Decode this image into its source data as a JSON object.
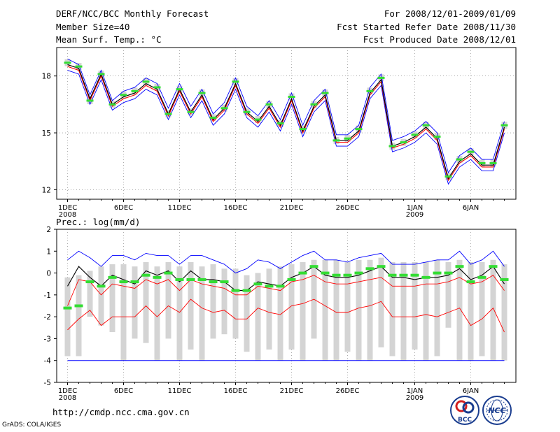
{
  "header": {
    "title": "DERF/NCC/BCC Monthly Forecast",
    "member_size": "Member Size=40",
    "variable": "Mean Surf. Temp.: °C",
    "period": "For 2008/12/01-2009/01/09",
    "started": "Fcst Started Refer Date 2008/11/30",
    "produced": "Fcst Produced Date 2008/12/01"
  },
  "footer": {
    "url": "http://cmdp.ncc.cma.gov.cn",
    "credit": "GrADS: COLA/IGES",
    "logo_left_text": "BCC",
    "logo_right_text": "NCC"
  },
  "x_labels": [
    {
      "day": 1,
      "label": "1DEC",
      "year": "2008"
    },
    {
      "day": 6,
      "label": "6DEC"
    },
    {
      "day": 11,
      "label": "11DEC"
    },
    {
      "day": 16,
      "label": "16DEC"
    },
    {
      "day": 21,
      "label": "21DEC"
    },
    {
      "day": 26,
      "label": "26DEC"
    },
    {
      "day": 32,
      "label": "1JAN",
      "year": "2009"
    },
    {
      "day": 37,
      "label": "6JAN"
    }
  ],
  "colors": {
    "mean": "#000000",
    "median": "#ff0000",
    "bounds": "#0000ff",
    "obs": "#33dd33",
    "spread": "#d4d4d4",
    "frame": "#000000"
  },
  "chart_data": [
    {
      "type": "line",
      "title": "Mean Surf. Temp.: °C",
      "x": [
        1,
        2,
        3,
        4,
        5,
        6,
        7,
        8,
        9,
        10,
        11,
        12,
        13,
        14,
        15,
        16,
        17,
        18,
        19,
        20,
        21,
        22,
        23,
        24,
        25,
        26,
        27,
        28,
        29,
        30,
        31,
        32,
        33,
        34,
        35,
        36,
        37,
        38,
        39,
        40
      ],
      "ylim": [
        11.5,
        19.5
      ],
      "yticks": [
        12,
        15,
        18
      ],
      "series": [
        {
          "name": "mean",
          "values": [
            18.6,
            18.4,
            16.8,
            18.1,
            16.5,
            16.9,
            17.1,
            17.6,
            17.3,
            16.0,
            17.3,
            16.1,
            17.0,
            15.7,
            16.3,
            17.6,
            16.1,
            15.6,
            16.4,
            15.4,
            16.8,
            15.1,
            16.4,
            17.0,
            14.6,
            14.6,
            15.1,
            17.1,
            17.8,
            14.3,
            14.5,
            14.8,
            15.3,
            14.7,
            12.6,
            13.5,
            13.9,
            13.3,
            13.3,
            15.3
          ]
        },
        {
          "name": "median",
          "values": [
            18.5,
            18.3,
            16.7,
            18.0,
            16.4,
            16.8,
            17.0,
            17.5,
            17.2,
            15.9,
            17.2,
            16.0,
            16.9,
            15.6,
            16.2,
            17.5,
            16.0,
            15.5,
            16.3,
            15.3,
            16.7,
            15.0,
            16.3,
            16.9,
            14.5,
            14.5,
            15.0,
            17.0,
            17.7,
            14.2,
            14.4,
            14.7,
            15.2,
            14.6,
            12.5,
            13.4,
            13.8,
            13.2,
            13.2,
            15.2
          ]
        },
        {
          "name": "upper",
          "values": [
            18.9,
            18.6,
            17.0,
            18.3,
            16.7,
            17.2,
            17.4,
            17.9,
            17.6,
            16.3,
            17.6,
            16.4,
            17.3,
            16.0,
            16.6,
            17.9,
            16.4,
            15.9,
            16.7,
            15.7,
            17.1,
            15.4,
            16.7,
            17.3,
            14.9,
            14.9,
            15.4,
            17.4,
            18.1,
            14.6,
            14.8,
            15.1,
            15.6,
            15.0,
            12.9,
            13.8,
            14.2,
            13.6,
            13.6,
            15.6
          ]
        },
        {
          "name": "lower",
          "values": [
            18.3,
            18.1,
            16.5,
            17.8,
            16.2,
            16.6,
            16.8,
            17.3,
            17.0,
            15.7,
            17.0,
            15.8,
            16.7,
            15.4,
            16.0,
            17.3,
            15.8,
            15.3,
            16.1,
            15.1,
            16.5,
            14.8,
            16.1,
            16.7,
            14.3,
            14.3,
            14.8,
            16.8,
            17.5,
            14.0,
            14.2,
            14.5,
            15.0,
            14.4,
            12.3,
            13.2,
            13.6,
            13.0,
            13.0,
            15.0
          ]
        },
        {
          "name": "observed",
          "values": [
            18.7,
            18.5,
            16.7,
            18.1,
            16.5,
            17.0,
            17.2,
            17.7,
            17.4,
            16.0,
            17.3,
            16.1,
            17.1,
            15.8,
            16.3,
            17.7,
            16.1,
            15.7,
            16.5,
            15.5,
            16.9,
            15.2,
            16.5,
            17.1,
            14.6,
            14.7,
            15.2,
            17.2,
            17.9,
            14.3,
            14.5,
            14.9,
            15.4,
            14.8,
            12.7,
            13.6,
            14.0,
            13.4,
            13.4,
            15.4
          ]
        }
      ]
    },
    {
      "type": "line",
      "title": "Prec.: log(mm/d)",
      "x": [
        1,
        2,
        3,
        4,
        5,
        6,
        7,
        8,
        9,
        10,
        11,
        12,
        13,
        14,
        15,
        16,
        17,
        18,
        19,
        20,
        21,
        22,
        23,
        24,
        25,
        26,
        27,
        28,
        29,
        30,
        31,
        32,
        33,
        34,
        35,
        36,
        37,
        38,
        39,
        40
      ],
      "ylim": [
        -5,
        2
      ],
      "yticks": [
        -5,
        -4,
        -3,
        -2,
        -1,
        0,
        1,
        2
      ],
      "series": [
        {
          "name": "spread_top",
          "values": [
            -0.2,
            -0.1,
            0.1,
            0.3,
            0.4,
            0.4,
            0.3,
            0.5,
            0.3,
            0.5,
            0.3,
            0.5,
            0.3,
            0.4,
            0.2,
            0.2,
            -0.1,
            0.0,
            0.2,
            0.3,
            0.4,
            0.5,
            0.6,
            0.6,
            0.6,
            0.5,
            0.6,
            0.6,
            0.7,
            0.5,
            0.5,
            0.5,
            0.5,
            0.6,
            0.5,
            0.6,
            0.5,
            0.5,
            0.6,
            0.4
          ]
        },
        {
          "name": "spread_bottom",
          "values": [
            -3.8,
            -3.8,
            -2.0,
            -2.4,
            -2.7,
            -4.0,
            -3.0,
            -3.2,
            -4.0,
            -3.0,
            -4.0,
            -3.5,
            -4.0,
            -3.0,
            -2.8,
            -3.0,
            -3.6,
            -4.0,
            -3.5,
            -4.0,
            -3.5,
            -4.0,
            -3.0,
            -4.0,
            -4.0,
            -3.6,
            -4.0,
            -4.0,
            -3.4,
            -3.8,
            -4.0,
            -3.5,
            -4.0,
            -3.8,
            -2.5,
            -4.0,
            -4.0,
            -3.8,
            -4.0,
            -4.0
          ]
        },
        {
          "name": "upper",
          "values": [
            0.6,
            1.0,
            0.7,
            0.3,
            0.8,
            0.8,
            0.6,
            0.9,
            0.8,
            0.8,
            0.4,
            0.8,
            0.8,
            0.6,
            0.4,
            0.0,
            0.2,
            0.6,
            0.5,
            0.2,
            0.5,
            0.8,
            1.0,
            0.6,
            0.6,
            0.5,
            0.7,
            0.8,
            0.9,
            0.4,
            0.4,
            0.4,
            0.5,
            0.6,
            0.6,
            1.0,
            0.4,
            0.6,
            1.0,
            0.3
          ]
        },
        {
          "name": "mean",
          "values": [
            -0.6,
            0.3,
            -0.2,
            -0.6,
            -0.1,
            -0.3,
            -0.5,
            0.1,
            -0.1,
            0.1,
            -0.4,
            0.1,
            -0.3,
            -0.3,
            -0.4,
            -0.8,
            -0.8,
            -0.4,
            -0.5,
            -0.6,
            -0.2,
            0.0,
            0.3,
            -0.1,
            -0.2,
            -0.2,
            -0.1,
            0.1,
            0.3,
            -0.2,
            -0.2,
            -0.3,
            -0.2,
            -0.2,
            -0.1,
            0.2,
            -0.3,
            -0.1,
            0.3,
            -0.5
          ]
        },
        {
          "name": "median",
          "values": [
            -1.5,
            -0.3,
            -0.4,
            -1.0,
            -0.5,
            -0.6,
            -0.7,
            -0.3,
            -0.5,
            -0.3,
            -0.8,
            -0.3,
            -0.5,
            -0.6,
            -0.7,
            -1.0,
            -1.0,
            -0.6,
            -0.7,
            -0.8,
            -0.4,
            -0.3,
            -0.1,
            -0.4,
            -0.5,
            -0.5,
            -0.4,
            -0.3,
            -0.2,
            -0.6,
            -0.6,
            -0.6,
            -0.5,
            -0.5,
            -0.4,
            -0.2,
            -0.5,
            -0.4,
            -0.1,
            -0.8
          ]
        },
        {
          "name": "lower",
          "values": [
            -2.6,
            -2.1,
            -1.7,
            -2.4,
            -2.0,
            -2.0,
            -2.0,
            -1.5,
            -2.0,
            -1.5,
            -1.8,
            -1.2,
            -1.6,
            -1.8,
            -1.7,
            -2.1,
            -2.1,
            -1.6,
            -1.8,
            -1.9,
            -1.5,
            -1.4,
            -1.2,
            -1.5,
            -1.8,
            -1.8,
            -1.6,
            -1.5,
            -1.3,
            -2.0,
            -2.0,
            -2.0,
            -1.9,
            -2.0,
            -1.8,
            -1.6,
            -2.4,
            -2.1,
            -1.6,
            -2.7
          ]
        },
        {
          "name": "floor",
          "values": [
            -4,
            -4,
            -4,
            -4,
            -4,
            -4,
            -4,
            -4,
            -4,
            -4,
            -4,
            -4,
            -4,
            -4,
            -4,
            -4,
            -4,
            -4,
            -4,
            -4,
            -4,
            -4,
            -4,
            -4,
            -4,
            -4,
            -4,
            -4,
            -4,
            -4,
            -4,
            -4,
            -4,
            -4,
            -4,
            -4,
            -4,
            -4,
            -4,
            -4
          ]
        },
        {
          "name": "observed",
          "values": [
            -1.6,
            -1.5,
            -0.4,
            -0.6,
            -0.2,
            -0.4,
            -0.4,
            -0.1,
            -0.2,
            0.0,
            -0.3,
            -0.3,
            -0.3,
            -0.4,
            -0.4,
            -0.8,
            -0.8,
            -0.5,
            -0.6,
            -0.6,
            -0.3,
            0.0,
            0.3,
            0.0,
            -0.1,
            -0.1,
            0.0,
            0.2,
            0.3,
            -0.1,
            -0.1,
            -0.1,
            -0.2,
            0.0,
            0.0,
            0.3,
            -0.4,
            -0.2,
            0.3,
            -0.3
          ]
        }
      ]
    }
  ]
}
